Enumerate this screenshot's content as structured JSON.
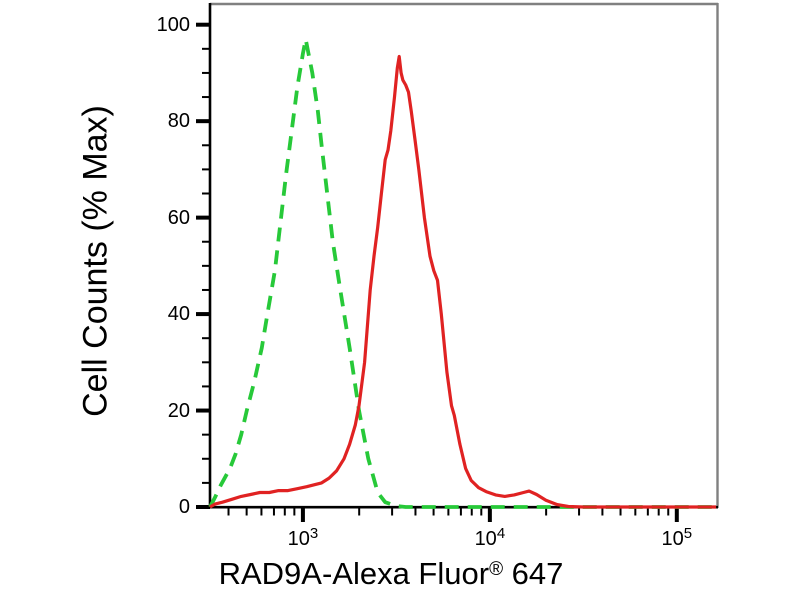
{
  "figure": {
    "background": "#ffffff",
    "axis_color": "#000000",
    "frame_color": "#808080"
  },
  "chart_data": {
    "type": "line",
    "title": "",
    "xlabel": "RAD9A-Alexa Fluor® 647",
    "xlabel_parts": {
      "base": "RAD9A-Alexa Fluor",
      "sup": "®",
      "suffix": " 647"
    },
    "ylabel": "Cell Counts (% Max)",
    "grid": false,
    "legend": null,
    "x_axis": {
      "scale": "log10",
      "range_log10": [
        2.503,
        5.215
      ],
      "major_ticks": [
        {
          "log10": 3,
          "mantissa": "10",
          "exponent": "3"
        },
        {
          "log10": 4,
          "mantissa": "10",
          "exponent": "4"
        },
        {
          "log10": 5,
          "mantissa": "10",
          "exponent": "5"
        }
      ],
      "minor_mantissas": [
        2,
        3,
        4,
        5,
        6,
        7,
        8,
        9
      ],
      "decades": [
        2,
        3,
        4,
        5
      ]
    },
    "y_axis": {
      "scale": "linear",
      "range": [
        0,
        104.5
      ],
      "major_ticks": [
        0,
        20,
        40,
        60,
        80,
        100
      ],
      "minor_step": 5
    },
    "series": [
      {
        "id": "green-dashed",
        "color": "#27c939",
        "line_style": "dashed",
        "line_width": 3.8,
        "dash_pattern": [
          14,
          9
        ],
        "points": [
          [
            2.503,
            0
          ],
          [
            2.53,
            2
          ],
          [
            2.56,
            4.5
          ],
          [
            2.61,
            8
          ],
          [
            2.64,
            11
          ],
          [
            2.67,
            15
          ],
          [
            2.7,
            20
          ],
          [
            2.74,
            26
          ],
          [
            2.78,
            33
          ],
          [
            2.81,
            40
          ],
          [
            2.85,
            49
          ],
          [
            2.88,
            59
          ],
          [
            2.91,
            69
          ],
          [
            2.94,
            78
          ],
          [
            2.97,
            87
          ],
          [
            3.0,
            94
          ],
          [
            3.015,
            97
          ],
          [
            3.03,
            94
          ],
          [
            3.05,
            90
          ],
          [
            3.08,
            82
          ],
          [
            3.1,
            75
          ],
          [
            3.13,
            65
          ],
          [
            3.16,
            55
          ],
          [
            3.2,
            45
          ],
          [
            3.25,
            33
          ],
          [
            3.3,
            20
          ],
          [
            3.35,
            10
          ],
          [
            3.4,
            3
          ],
          [
            3.44,
            1
          ],
          [
            3.5,
            0.2
          ],
          [
            3.55,
            0
          ],
          [
            4.0,
            0
          ],
          [
            4.6,
            0
          ],
          [
            5.21,
            0
          ]
        ]
      },
      {
        "id": "red-solid",
        "color": "#e02222",
        "line_style": "solid",
        "line_width": 3.2,
        "dash_pattern": null,
        "points": [
          [
            2.503,
            0
          ],
          [
            2.53,
            0.6
          ],
          [
            2.57,
            1
          ],
          [
            2.62,
            1.6
          ],
          [
            2.67,
            2.2
          ],
          [
            2.72,
            2.6
          ],
          [
            2.77,
            3
          ],
          [
            2.82,
            3
          ],
          [
            2.87,
            3.4
          ],
          [
            2.92,
            3.4
          ],
          [
            2.97,
            3.8
          ],
          [
            3.02,
            4.2
          ],
          [
            3.06,
            4.6
          ],
          [
            3.1,
            5
          ],
          [
            3.14,
            6
          ],
          [
            3.18,
            7.5
          ],
          [
            3.22,
            10
          ],
          [
            3.25,
            13
          ],
          [
            3.28,
            17
          ],
          [
            3.3,
            21
          ],
          [
            3.33,
            30
          ],
          [
            3.36,
            45
          ],
          [
            3.38,
            52
          ],
          [
            3.4,
            58
          ],
          [
            3.42,
            65
          ],
          [
            3.44,
            72
          ],
          [
            3.455,
            74
          ],
          [
            3.47,
            78
          ],
          [
            3.49,
            85
          ],
          [
            3.505,
            91
          ],
          [
            3.515,
            93.4
          ],
          [
            3.525,
            90
          ],
          [
            3.535,
            88.5
          ],
          [
            3.55,
            87.5
          ],
          [
            3.565,
            86
          ],
          [
            3.58,
            82
          ],
          [
            3.6,
            76
          ],
          [
            3.62,
            70
          ],
          [
            3.65,
            60
          ],
          [
            3.68,
            52
          ],
          [
            3.7,
            49
          ],
          [
            3.72,
            47
          ],
          [
            3.74,
            40
          ],
          [
            3.77,
            28
          ],
          [
            3.795,
            21
          ],
          [
            3.81,
            19
          ],
          [
            3.84,
            13
          ],
          [
            3.87,
            8
          ],
          [
            3.9,
            5.5
          ],
          [
            3.94,
            4
          ],
          [
            3.98,
            3.2
          ],
          [
            4.03,
            2.5
          ],
          [
            4.08,
            2.2
          ],
          [
            4.13,
            2.5
          ],
          [
            4.18,
            3
          ],
          [
            4.21,
            3.3
          ],
          [
            4.25,
            2.6
          ],
          [
            4.3,
            1.4
          ],
          [
            4.36,
            0.5
          ],
          [
            4.42,
            0.1
          ],
          [
            4.5,
            0
          ],
          [
            5.21,
            0
          ]
        ]
      }
    ]
  }
}
